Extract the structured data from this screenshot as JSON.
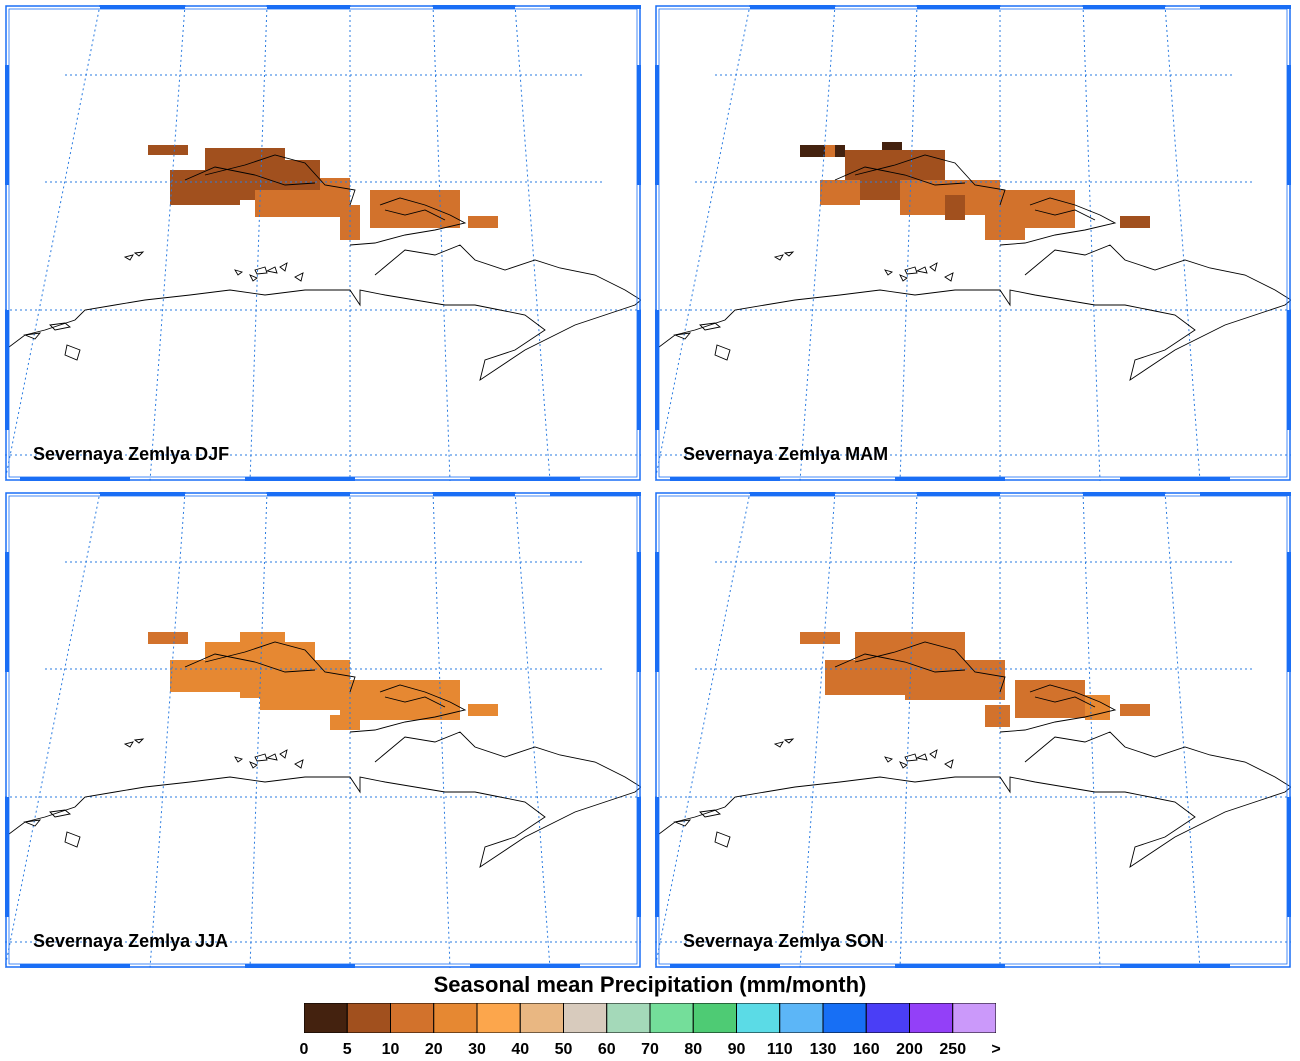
{
  "panels": [
    {
      "label": "Severnaya Zemlya DJF"
    },
    {
      "label": "Severnaya Zemlya MAM"
    },
    {
      "label": "Severnaya Zemlya JJA"
    },
    {
      "label": "Severnaya Zemlya SON"
    }
  ],
  "legend": {
    "title": "Seasonal mean Precipitation (mm/month)",
    "ticks": [
      "0",
      "5",
      "10",
      "20",
      "30",
      "40",
      "50",
      "60",
      "70",
      "80",
      "90",
      "110",
      "130",
      "160",
      "200",
      "250",
      ">"
    ],
    "colors": [
      "#44220f",
      "#a1501e",
      "#d2722c",
      "#e68832",
      "#fca64c",
      "#e9b782",
      "#d8cbbd",
      "#a4d9b9",
      "#74de9a",
      "#4ecb74",
      "#5bdbe6",
      "#5cb6f7",
      "#176ff5",
      "#4a3ef6",
      "#9340f8",
      "#cb99fa"
    ]
  },
  "colors": {
    "frame": "#1a6ef5",
    "graticule": "#2a7be0",
    "coast": "#000000",
    "precip_dark": "#44220f",
    "precip_brown": "#a1501e",
    "precip_orange": "#d2722c",
    "precip_light": "#e68832"
  }
}
